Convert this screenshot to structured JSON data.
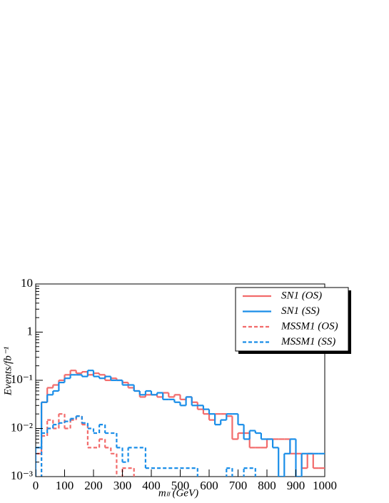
{
  "chart_data": {
    "type": "histogram",
    "log_y": true,
    "xlabel": "mₗₗ (GeV)",
    "ylabel": "Events/fb⁻¹",
    "xlim": [
      0,
      1000
    ],
    "xticks": [
      0,
      100,
      200,
      300,
      400,
      500,
      600,
      700,
      800,
      900,
      1000
    ],
    "ylim": [
      0.001,
      10
    ],
    "yticks": [
      {
        "value": 0.001,
        "label": "10⁻³"
      },
      {
        "value": 0.01,
        "label": "10⁻²"
      },
      {
        "value": 0.1,
        "label": "10⁻¹"
      },
      1,
      10
    ],
    "legend": "upper right",
    "bins": [
      0,
      20,
      40,
      60,
      80,
      100,
      120,
      140,
      160,
      180,
      200,
      220,
      240,
      260,
      280,
      300,
      320,
      340,
      360,
      380,
      400,
      420,
      440,
      460,
      480,
      500,
      520,
      540,
      560,
      580,
      600,
      620,
      640,
      660,
      680,
      700,
      720,
      740,
      760,
      780,
      800,
      820,
      840,
      860,
      880,
      900,
      920,
      940,
      960,
      980,
      1000
    ],
    "series": [
      {
        "name": "SN1 (OS)",
        "color": "#f26b6b",
        "dash": false,
        "values": [
          0.003,
          0.035,
          0.07,
          0.08,
          0.1,
          0.13,
          0.16,
          0.14,
          0.15,
          0.13,
          0.14,
          0.13,
          0.1,
          0.11,
          0.1,
          0.09,
          0.07,
          0.06,
          0.045,
          0.05,
          0.05,
          0.045,
          0.055,
          0.045,
          0.05,
          0.04,
          0.045,
          0.035,
          0.025,
          0.02,
          0.015,
          0.02,
          0.02,
          0.018,
          0.006,
          0.008,
          0.008,
          0.004,
          0.004,
          0.004,
          0.006,
          0.006,
          0.006,
          0.006,
          0.003,
          0.003,
          0.0015,
          0.003,
          0.0015,
          0.0015
        ]
      },
      {
        "name": "SN1 (SS)",
        "color": "#1a8ee8",
        "dash": false,
        "values": [
          0.004,
          0.035,
          0.05,
          0.06,
          0.09,
          0.11,
          0.13,
          0.13,
          0.12,
          0.16,
          0.12,
          0.11,
          0.12,
          0.1,
          0.1,
          0.08,
          0.08,
          0.06,
          0.05,
          0.06,
          0.05,
          0.055,
          0.04,
          0.04,
          0.035,
          0.03,
          0.045,
          0.03,
          0.03,
          0.025,
          0.02,
          0.012,
          0.015,
          0.02,
          0.02,
          0.012,
          0.006,
          0.009,
          0.008,
          0.006,
          0.006,
          0.004,
          0.001,
          0.003,
          0.006,
          0.001,
          0.003,
          0.003,
          0.003,
          0.003
        ]
      },
      {
        "name": "MSSM1 (OS)",
        "color": "#f26b6b",
        "dash": true,
        "values": [
          0,
          0.007,
          0.015,
          0.01,
          0.02,
          0.01,
          0.015,
          0.018,
          0.012,
          0.004,
          0.004,
          0.006,
          0.004,
          0.003,
          0,
          0.0015,
          0.0015,
          0,
          0,
          0,
          0,
          0,
          0,
          0,
          0,
          0,
          0,
          0,
          0,
          0,
          0,
          0,
          0,
          0,
          0,
          0,
          0,
          0,
          0,
          0,
          0,
          0,
          0,
          0,
          0,
          0,
          0,
          0,
          0,
          0
        ]
      },
      {
        "name": "MSSM1 (SS)",
        "color": "#1a8ee8",
        "dash": true,
        "values": [
          0,
          0.008,
          0.01,
          0.012,
          0.013,
          0.014,
          0.016,
          0.018,
          0.013,
          0.01,
          0.008,
          0.012,
          0.008,
          0.008,
          0.004,
          0.002,
          0.004,
          0.004,
          0.004,
          0.0015,
          0.0015,
          0.0015,
          0.0015,
          0.0015,
          0.0015,
          0.0015,
          0.0015,
          0.0015,
          0,
          0,
          0,
          0,
          0,
          0.0015,
          0,
          0,
          0.0015,
          0.0015,
          0,
          0,
          0,
          0,
          0,
          0,
          0,
          0,
          0,
          0,
          0,
          0
        ]
      }
    ]
  }
}
